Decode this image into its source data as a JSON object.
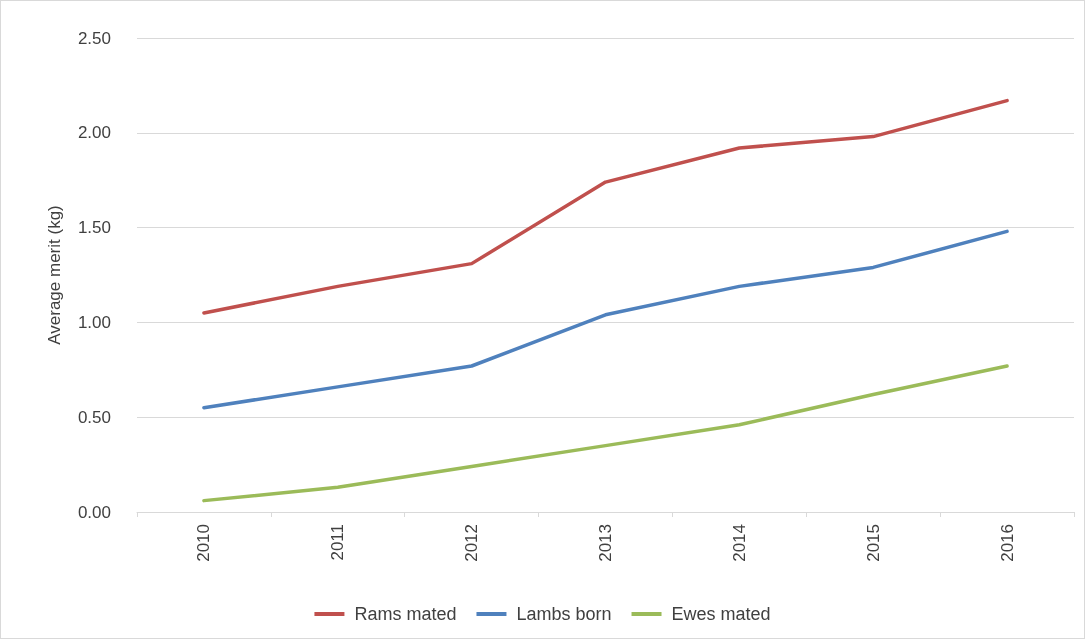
{
  "chart_data": {
    "type": "line",
    "ylabel": "Average merit (kg)",
    "categories": [
      "2010",
      "2011",
      "2012",
      "2013",
      "2014",
      "2015",
      "2016"
    ],
    "series": [
      {
        "name": "Rams mated",
        "color": "#c0504d",
        "values": [
          1.05,
          1.19,
          1.31,
          1.74,
          1.92,
          1.98,
          2.17
        ]
      },
      {
        "name": "Lambs born",
        "color": "#4f81bd",
        "values": [
          0.55,
          0.66,
          0.77,
          1.04,
          1.19,
          1.29,
          1.48
        ]
      },
      {
        "name": "Ewes mated",
        "color": "#9bbb59",
        "values": [
          0.06,
          0.13,
          0.24,
          0.35,
          0.46,
          0.62,
          0.77
        ]
      }
    ],
    "ylim": [
      0,
      2.5
    ],
    "yticks": [
      {
        "value": 0,
        "label": "0.00"
      },
      {
        "value": 0.5,
        "label": "0.50"
      },
      {
        "value": 1,
        "label": "1.00"
      },
      {
        "value": 1.5,
        "label": "1.50"
      },
      {
        "value": 2,
        "label": "2.00"
      },
      {
        "value": 2.5,
        "label": "2.50"
      }
    ],
    "grid": "y",
    "legend": "bottom",
    "marker": "none"
  }
}
